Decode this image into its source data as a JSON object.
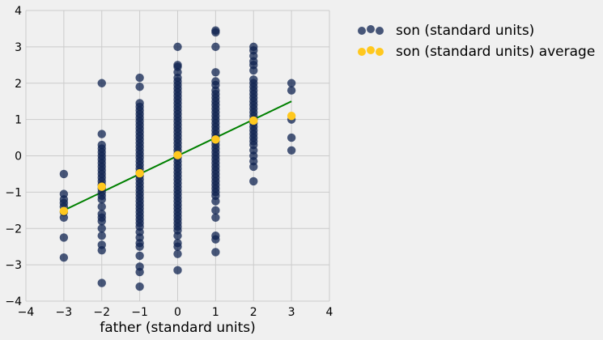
{
  "chart_data": {
    "type": "scatter",
    "title": "",
    "xlabel": "father (standard units)",
    "ylabel": "",
    "xlim": [
      -4,
      4
    ],
    "ylim": [
      -4,
      4
    ],
    "xticks": [
      -4,
      -3,
      -2,
      -1,
      0,
      1,
      2,
      3,
      4
    ],
    "yticks": [
      -4,
      -3,
      -2,
      -1,
      0,
      1,
      2,
      3,
      4
    ],
    "tick_labels_x": [
      "−4",
      "−3",
      "−2",
      "−1",
      "0",
      "1",
      "2",
      "3",
      "4"
    ],
    "tick_labels_y": [
      "−4",
      "−3",
      "−2",
      "−1",
      "0",
      "1",
      "2",
      "3",
      "4"
    ],
    "grid": true,
    "legend_position": "outside-right-top",
    "colors": {
      "background": "#f0f0f0",
      "grid": "#cbcbcb",
      "son_points": "#0f2350",
      "average_points": "#ffc81e",
      "regression_line": "#008000"
    },
    "series": [
      {
        "name": "son (standard units)",
        "marker": "circle",
        "color": "#0f2350",
        "points": [
          [
            -3,
            -0.5
          ],
          [
            -3,
            -1.05
          ],
          [
            -3,
            -1.2
          ],
          [
            -3,
            -1.3
          ],
          [
            -3,
            -1.4
          ],
          [
            -3,
            -1.55
          ],
          [
            -3,
            -1.7
          ],
          [
            -3,
            -2.25
          ],
          [
            -3,
            -2.8
          ],
          [
            -2,
            2.0
          ],
          [
            -2,
            0.6
          ],
          [
            -2,
            0.3
          ],
          [
            -2,
            0.2
          ],
          [
            -2,
            0.1
          ],
          [
            -2,
            0.0
          ],
          [
            -2,
            -0.1
          ],
          [
            -2,
            -0.2
          ],
          [
            -2,
            -0.3
          ],
          [
            -2,
            -0.4
          ],
          [
            -2,
            -0.5
          ],
          [
            -2,
            -0.6
          ],
          [
            -2,
            -0.7
          ],
          [
            -2,
            -0.8
          ],
          [
            -2,
            -0.9
          ],
          [
            -2,
            -1.0
          ],
          [
            -2,
            -1.1
          ],
          [
            -2,
            -1.2
          ],
          [
            -2,
            -1.4
          ],
          [
            -2,
            -1.6
          ],
          [
            -2,
            -1.7
          ],
          [
            -2,
            -1.8
          ],
          [
            -2,
            -2.0
          ],
          [
            -2,
            -2.2
          ],
          [
            -2,
            -2.45
          ],
          [
            -2,
            -2.6
          ],
          [
            -2,
            -3.5
          ],
          [
            -1,
            2.15
          ],
          [
            -1,
            1.9
          ],
          [
            -1,
            1.45
          ],
          [
            -1,
            1.35
          ],
          [
            -1,
            1.25
          ],
          [
            -1,
            1.15
          ],
          [
            -1,
            1.05
          ],
          [
            -1,
            0.95
          ],
          [
            -1,
            0.85
          ],
          [
            -1,
            0.75
          ],
          [
            -1,
            0.65
          ],
          [
            -1,
            0.55
          ],
          [
            -1,
            0.45
          ],
          [
            -1,
            0.35
          ],
          [
            -1,
            0.25
          ],
          [
            -1,
            0.15
          ],
          [
            -1,
            0.05
          ],
          [
            -1,
            -0.05
          ],
          [
            -1,
            -0.15
          ],
          [
            -1,
            -0.25
          ],
          [
            -1,
            -0.35
          ],
          [
            -1,
            -0.45
          ],
          [
            -1,
            -0.55
          ],
          [
            -1,
            -0.65
          ],
          [
            -1,
            -0.75
          ],
          [
            -1,
            -0.85
          ],
          [
            -1,
            -0.95
          ],
          [
            -1,
            -1.05
          ],
          [
            -1,
            -1.15
          ],
          [
            -1,
            -1.25
          ],
          [
            -1,
            -1.35
          ],
          [
            -1,
            -1.45
          ],
          [
            -1,
            -1.55
          ],
          [
            -1,
            -1.65
          ],
          [
            -1,
            -1.75
          ],
          [
            -1,
            -1.85
          ],
          [
            -1,
            -1.95
          ],
          [
            -1,
            -2.1
          ],
          [
            -1,
            -2.25
          ],
          [
            -1,
            -2.4
          ],
          [
            -1,
            -2.5
          ],
          [
            -1,
            -2.75
          ],
          [
            -1,
            -3.05
          ],
          [
            -1,
            -3.2
          ],
          [
            -1,
            -3.6
          ],
          [
            0,
            3.0
          ],
          [
            0,
            2.5
          ],
          [
            0,
            2.45
          ],
          [
            0,
            2.3
          ],
          [
            0,
            2.15
          ],
          [
            0,
            2.05
          ],
          [
            0,
            1.95
          ],
          [
            0,
            1.85
          ],
          [
            0,
            1.75
          ],
          [
            0,
            1.65
          ],
          [
            0,
            1.55
          ],
          [
            0,
            1.45
          ],
          [
            0,
            1.35
          ],
          [
            0,
            1.25
          ],
          [
            0,
            1.15
          ],
          [
            0,
            1.05
          ],
          [
            0,
            0.95
          ],
          [
            0,
            0.85
          ],
          [
            0,
            0.75
          ],
          [
            0,
            0.65
          ],
          [
            0,
            0.55
          ],
          [
            0,
            0.45
          ],
          [
            0,
            0.35
          ],
          [
            0,
            0.25
          ],
          [
            0,
            0.15
          ],
          [
            0,
            0.05
          ],
          [
            0,
            -0.05
          ],
          [
            0,
            -0.15
          ],
          [
            0,
            -0.25
          ],
          [
            0,
            -0.35
          ],
          [
            0,
            -0.45
          ],
          [
            0,
            -0.55
          ],
          [
            0,
            -0.65
          ],
          [
            0,
            -0.75
          ],
          [
            0,
            -0.85
          ],
          [
            0,
            -0.95
          ],
          [
            0,
            -1.05
          ],
          [
            0,
            -1.15
          ],
          [
            0,
            -1.25
          ],
          [
            0,
            -1.35
          ],
          [
            0,
            -1.45
          ],
          [
            0,
            -1.55
          ],
          [
            0,
            -1.65
          ],
          [
            0,
            -1.75
          ],
          [
            0,
            -1.85
          ],
          [
            0,
            -1.95
          ],
          [
            0,
            -2.05
          ],
          [
            0,
            -2.2
          ],
          [
            0,
            -2.4
          ],
          [
            0,
            -2.5
          ],
          [
            0,
            -2.7
          ],
          [
            0,
            -3.15
          ],
          [
            1,
            3.45
          ],
          [
            1,
            3.4
          ],
          [
            1,
            3.0
          ],
          [
            1,
            2.3
          ],
          [
            1,
            2.05
          ],
          [
            1,
            1.95
          ],
          [
            1,
            1.8
          ],
          [
            1,
            1.7
          ],
          [
            1,
            1.6
          ],
          [
            1,
            1.5
          ],
          [
            1,
            1.4
          ],
          [
            1,
            1.3
          ],
          [
            1,
            1.2
          ],
          [
            1,
            1.1
          ],
          [
            1,
            1.0
          ],
          [
            1,
            0.9
          ],
          [
            1,
            0.8
          ],
          [
            1,
            0.7
          ],
          [
            1,
            0.6
          ],
          [
            1,
            0.5
          ],
          [
            1,
            0.4
          ],
          [
            1,
            0.3
          ],
          [
            1,
            0.2
          ],
          [
            1,
            0.1
          ],
          [
            1,
            0.0
          ],
          [
            1,
            -0.1
          ],
          [
            1,
            -0.2
          ],
          [
            1,
            -0.3
          ],
          [
            1,
            -0.4
          ],
          [
            1,
            -0.5
          ],
          [
            1,
            -0.6
          ],
          [
            1,
            -0.7
          ],
          [
            1,
            -0.8
          ],
          [
            1,
            -0.9
          ],
          [
            1,
            -1.0
          ],
          [
            1,
            -1.1
          ],
          [
            1,
            -1.25
          ],
          [
            1,
            -1.5
          ],
          [
            1,
            -1.7
          ],
          [
            1,
            -2.2
          ],
          [
            1,
            -2.3
          ],
          [
            1,
            -2.65
          ],
          [
            2,
            3.0
          ],
          [
            2,
            2.9
          ],
          [
            2,
            2.75
          ],
          [
            2,
            2.6
          ],
          [
            2,
            2.5
          ],
          [
            2,
            2.35
          ],
          [
            2,
            2.1
          ],
          [
            2,
            2.0
          ],
          [
            2,
            1.9
          ],
          [
            2,
            1.8
          ],
          [
            2,
            1.7
          ],
          [
            2,
            1.6
          ],
          [
            2,
            1.5
          ],
          [
            2,
            1.4
          ],
          [
            2,
            1.3
          ],
          [
            2,
            1.2
          ],
          [
            2,
            1.1
          ],
          [
            2,
            1.0
          ],
          [
            2,
            0.9
          ],
          [
            2,
            0.8
          ],
          [
            2,
            0.7
          ],
          [
            2,
            0.6
          ],
          [
            2,
            0.5
          ],
          [
            2,
            0.4
          ],
          [
            2,
            0.3
          ],
          [
            2,
            0.15
          ],
          [
            2,
            0.0
          ],
          [
            2,
            -0.15
          ],
          [
            2,
            -0.3
          ],
          [
            2,
            -0.7
          ],
          [
            3,
            2.0
          ],
          [
            3,
            1.8
          ],
          [
            3,
            1.0
          ],
          [
            3,
            0.5
          ],
          [
            3,
            0.15
          ]
        ]
      },
      {
        "name": "son (standard units) average",
        "marker": "circle",
        "color": "#ffc81e",
        "points": [
          [
            -3,
            -1.52
          ],
          [
            -2,
            -0.85
          ],
          [
            -1,
            -0.48
          ],
          [
            0,
            0.02
          ],
          [
            1,
            0.45
          ],
          [
            2,
            0.97
          ],
          [
            3,
            1.1
          ]
        ]
      }
    ],
    "regression_line": {
      "color": "#008000",
      "from": [
        -3,
        -1.5
      ],
      "to": [
        3,
        1.5
      ]
    }
  }
}
